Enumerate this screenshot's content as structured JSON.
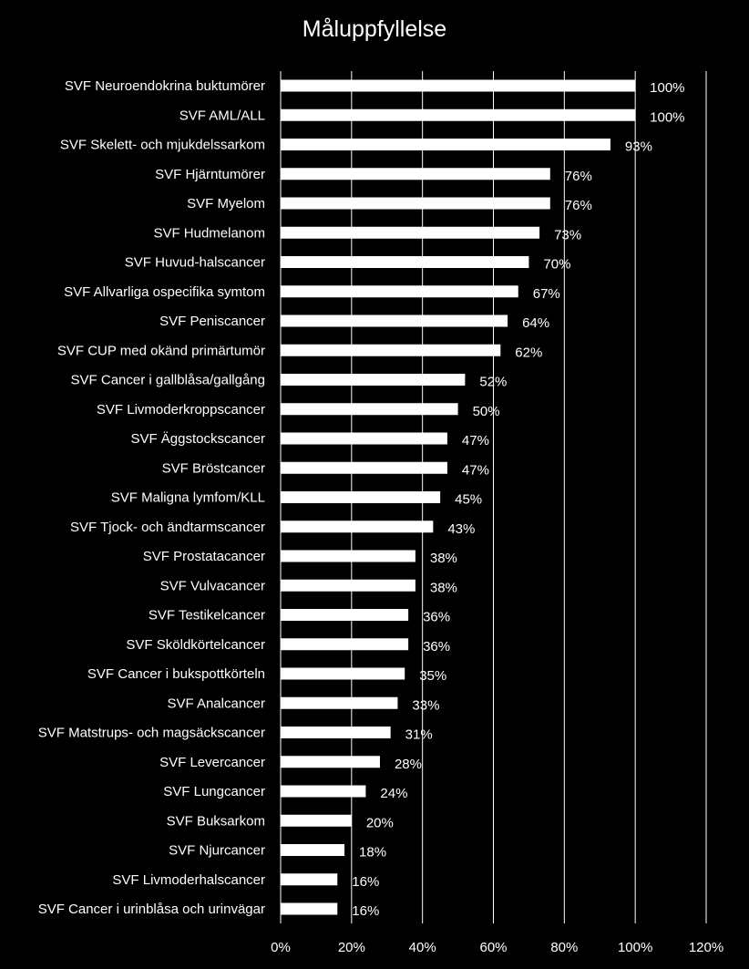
{
  "chart_data": {
    "type": "bar",
    "orientation": "horizontal",
    "title": "Måluppfyllelse",
    "xlabel": "",
    "ylabel": "",
    "xlim": [
      0,
      120
    ],
    "x_ticks": [
      0,
      20,
      40,
      60,
      80,
      100,
      120
    ],
    "x_tick_labels": [
      "0%",
      "20%",
      "40%",
      "60%",
      "80%",
      "100%",
      "120%"
    ],
    "grid": "vertical",
    "legend": "none",
    "bar_color": "#ffffff",
    "background_color": "#000000",
    "gridline_color": "#ffffff",
    "categories": [
      "SVF Neuroendokrina buktumörer",
      "SVF AML/ALL",
      "SVF Skelett- och mjukdelssarkom",
      "SVF Hjärntumörer",
      "SVF Myelom",
      "SVF Hudmelanom",
      "SVF Huvud-halscancer",
      "SVF Allvarliga ospecifika symtom",
      "SVF Peniscancer",
      "SVF CUP med okänd primärtumör",
      "SVF Cancer i gallblåsa/gallgång",
      "SVF Livmoderkroppscancer",
      "SVF Äggstockscancer",
      "SVF Bröstcancer",
      "SVF Maligna lymfom/KLL",
      "SVF Tjock- och ändtarmscancer",
      "SVF Prostatacancer",
      "SVF Vulvacancer",
      "SVF Testikelcancer",
      "SVF Sköldkörtelcancer",
      "SVF Cancer i bukspottkörteln",
      "SVF Analcancer",
      "SVF Matstrups- och magsäckscancer",
      "SVF Levercancer",
      "SVF Lungcancer",
      "SVF Buksarkom",
      "SVF Njurcancer",
      "SVF Livmoderhalscancer",
      "SVF Cancer i urinblåsa och urinvägar"
    ],
    "values": [
      100,
      100,
      93,
      76,
      76,
      73,
      70,
      67,
      64,
      62,
      52,
      50,
      47,
      47,
      45,
      43,
      38,
      38,
      36,
      36,
      35,
      33,
      31,
      28,
      24,
      20,
      18,
      16,
      16
    ],
    "value_labels": [
      "100%",
      "100%",
      "93%",
      "76%",
      "76%",
      "73%",
      "70%",
      "67%",
      "64%",
      "62%",
      "52%",
      "50%",
      "47%",
      "47%",
      "45%",
      "43%",
      "38%",
      "38%",
      "36%",
      "36%",
      "35%",
      "33%",
      "31%",
      "28%",
      "24%",
      "20%",
      "18%",
      "16%",
      "16%"
    ]
  }
}
